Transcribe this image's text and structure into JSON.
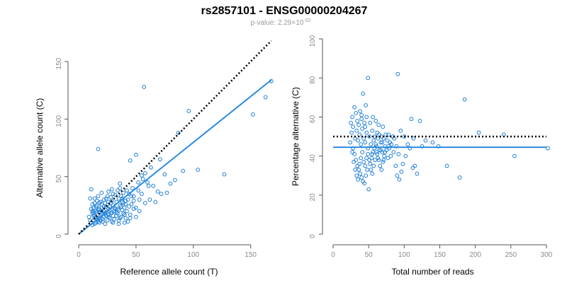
{
  "header": {
    "title": "rs2857101 - ENSG00000204267",
    "pvalue_prefix": "p-value: 2.29×10",
    "pvalue_exponent": "-32"
  },
  "colors": {
    "points": "#1f7fd6",
    "fit": "#2b8ce0",
    "reference": "#000000",
    "axis": "#555555",
    "ticks": "#8a8a8a"
  },
  "chart_data": [
    {
      "type": "scatter",
      "xlabel": "Reference allele count (T)",
      "ylabel": "Alternative allele count (C)",
      "xlim": [
        0,
        170
      ],
      "ylim": [
        0,
        150
      ],
      "xticks": [
        0,
        50,
        100,
        150
      ],
      "yticks": [
        0,
        50,
        100,
        150
      ],
      "reference_line": {
        "style": "dotted",
        "x": [
          0,
          168
        ],
        "y": [
          0,
          168
        ]
      },
      "fit_line": {
        "style": "solid",
        "x": [
          0,
          168
        ],
        "y": [
          0,
          134
        ]
      },
      "points": [
        [
          57,
          128
        ],
        [
          17,
          74
        ],
        [
          152,
          104
        ],
        [
          168,
          133
        ],
        [
          163,
          119
        ],
        [
          96,
          107
        ],
        [
          127,
          52
        ],
        [
          104,
          56
        ],
        [
          87,
          88
        ],
        [
          71,
          65
        ],
        [
          63,
          58
        ],
        [
          58,
          53
        ],
        [
          55,
          51
        ],
        [
          50,
          69
        ],
        [
          45,
          64
        ],
        [
          77,
          36
        ],
        [
          69,
          37
        ],
        [
          61,
          42
        ],
        [
          53,
          30
        ],
        [
          48,
          22
        ],
        [
          46,
          33
        ],
        [
          43,
          30
        ],
        [
          41,
          26
        ],
        [
          38,
          28
        ],
        [
          36,
          25
        ],
        [
          34,
          22
        ],
        [
          31,
          20
        ],
        [
          29,
          19
        ],
        [
          27,
          21
        ],
        [
          26,
          17
        ],
        [
          24,
          16
        ],
        [
          23,
          18
        ],
        [
          22,
          15
        ],
        [
          21,
          13
        ],
        [
          20,
          17
        ],
        [
          19,
          12
        ],
        [
          18,
          14
        ],
        [
          17,
          11
        ],
        [
          16,
          13
        ],
        [
          15,
          10
        ],
        [
          14,
          9
        ],
        [
          13,
          12
        ],
        [
          12,
          8
        ],
        [
          12,
          18
        ],
        [
          13,
          23
        ],
        [
          14,
          27
        ],
        [
          15,
          20
        ],
        [
          16,
          25
        ],
        [
          11,
          39
        ],
        [
          10,
          31
        ],
        [
          12,
          20
        ],
        [
          13,
          16
        ],
        [
          18,
          19
        ],
        [
          20,
          23
        ],
        [
          22,
          20
        ],
        [
          24,
          24
        ],
        [
          26,
          22
        ],
        [
          28,
          27
        ],
        [
          30,
          25
        ],
        [
          33,
          28
        ],
        [
          35,
          31
        ],
        [
          37,
          33
        ],
        [
          39,
          36
        ],
        [
          42,
          38
        ],
        [
          44,
          35
        ],
        [
          47,
          40
        ],
        [
          52,
          45
        ],
        [
          56,
          48
        ],
        [
          60,
          45
        ],
        [
          30,
          35
        ],
        [
          25,
          33
        ],
        [
          22,
          30
        ],
        [
          19,
          28
        ],
        [
          16,
          29
        ],
        [
          15,
          15
        ],
        [
          17,
          21
        ],
        [
          19,
          16
        ],
        [
          21,
          11
        ],
        [
          23,
          9
        ],
        [
          25,
          12
        ],
        [
          27,
          14
        ],
        [
          29,
          11
        ],
        [
          31,
          13
        ],
        [
          33,
          16
        ],
        [
          35,
          12
        ],
        [
          37,
          15
        ],
        [
          39,
          18
        ],
        [
          41,
          14
        ],
        [
          43,
          11
        ],
        [
          45,
          17
        ],
        [
          27,
          24
        ],
        [
          29,
          29
        ],
        [
          31,
          23
        ],
        [
          33,
          19
        ],
        [
          35,
          21
        ],
        [
          37,
          24
        ],
        [
          39,
          27
        ],
        [
          41,
          29
        ],
        [
          14,
          16
        ],
        [
          16,
          19
        ],
        [
          18,
          10
        ],
        [
          20,
          26
        ],
        [
          24,
          31
        ],
        [
          26,
          28
        ],
        [
          28,
          32
        ],
        [
          32,
          34
        ],
        [
          34,
          38
        ],
        [
          36,
          40
        ],
        [
          38,
          31
        ],
        [
          40,
          23
        ],
        [
          42,
          20
        ],
        [
          44,
          24
        ],
        [
          46,
          26
        ],
        [
          48,
          29
        ],
        [
          50,
          23
        ],
        [
          12,
          26
        ],
        [
          14,
          31
        ],
        [
          11,
          22
        ],
        [
          13,
          19
        ],
        [
          15,
          24
        ],
        [
          18,
          22
        ],
        [
          20,
          20
        ],
        [
          22,
          24
        ],
        [
          24,
          19
        ],
        [
          26,
          15
        ],
        [
          28,
          18
        ],
        [
          30,
          16
        ],
        [
          32,
          22
        ],
        [
          34,
          18
        ],
        [
          36,
          14
        ],
        [
          38,
          21
        ],
        [
          40,
          17
        ],
        [
          45,
          14
        ],
        [
          48,
          33
        ],
        [
          52,
          38
        ],
        [
          55,
          35
        ],
        [
          65,
          42
        ],
        [
          75,
          52
        ],
        [
          80,
          44
        ],
        [
          36,
          44
        ],
        [
          17,
          33
        ],
        [
          20,
          36
        ],
        [
          9,
          15
        ],
        [
          10,
          12
        ],
        [
          11,
          10
        ],
        [
          30,
          10
        ],
        [
          35,
          9
        ],
        [
          40,
          10
        ],
        [
          50,
          15
        ],
        [
          53,
          20
        ],
        [
          58,
          27
        ],
        [
          62,
          30
        ],
        [
          67,
          28
        ],
        [
          72,
          35
        ],
        [
          84,
          47
        ],
        [
          91,
          55
        ],
        [
          23,
          27
        ],
        [
          26,
          37
        ],
        [
          29,
          39
        ],
        [
          18,
          27
        ]
      ]
    },
    {
      "type": "scatter",
      "xlabel": "Total number of reads",
      "ylabel": "Percentage alternative (C)",
      "xlim": [
        0,
        300
      ],
      "ylim": [
        0,
        100
      ],
      "xticks": [
        0,
        50,
        100,
        150,
        200,
        250,
        300
      ],
      "yticks": [
        0,
        20,
        40,
        60,
        80,
        100
      ],
      "reference_line": {
        "style": "dotted",
        "x": [
          0,
          300
        ],
        "y": [
          50,
          50
        ]
      },
      "fit_line": {
        "style": "solid",
        "x": [
          0,
          300
        ],
        "y": [
          44.5,
          44.5
        ]
      },
      "points": [
        [
          91,
          82
        ],
        [
          49,
          80
        ],
        [
          42,
          72
        ],
        [
          185,
          69
        ],
        [
          46,
          66
        ],
        [
          30,
          65
        ],
        [
          38,
          63
        ],
        [
          40,
          61
        ],
        [
          110,
          59
        ],
        [
          122,
          58
        ],
        [
          25,
          57
        ],
        [
          34,
          58
        ],
        [
          45,
          55
        ],
        [
          55,
          53
        ],
        [
          62,
          52
        ],
        [
          70,
          55
        ],
        [
          78,
          51
        ],
        [
          84,
          50
        ],
        [
          95,
          53
        ],
        [
          100,
          50
        ],
        [
          113,
          49
        ],
        [
          205,
          52
        ],
        [
          240,
          51
        ],
        [
          140,
          47
        ],
        [
          148,
          45
        ],
        [
          160,
          35
        ],
        [
          178,
          29
        ],
        [
          255,
          40
        ],
        [
          302,
          44
        ],
        [
          24,
          47
        ],
        [
          28,
          44
        ],
        [
          30,
          41
        ],
        [
          32,
          38
        ],
        [
          34,
          35
        ],
        [
          36,
          33
        ],
        [
          38,
          31
        ],
        [
          40,
          29
        ],
        [
          42,
          27
        ],
        [
          44,
          26
        ],
        [
          46,
          30
        ],
        [
          48,
          33
        ],
        [
          50,
          23
        ],
        [
          52,
          36
        ],
        [
          54,
          39
        ],
        [
          56,
          42
        ],
        [
          58,
          44
        ],
        [
          60,
          46
        ],
        [
          62,
          41
        ],
        [
          64,
          38
        ],
        [
          66,
          35
        ],
        [
          68,
          33
        ],
        [
          70,
          37
        ],
        [
          72,
          40
        ],
        [
          75,
          43
        ],
        [
          78,
          45
        ],
        [
          80,
          47
        ],
        [
          85,
          42
        ],
        [
          88,
          35
        ],
        [
          90,
          30
        ],
        [
          93,
          28
        ],
        [
          96,
          32
        ],
        [
          98,
          36
        ],
        [
          102,
          40
        ],
        [
          105,
          46
        ],
        [
          108,
          44
        ],
        [
          112,
          34
        ],
        [
          115,
          35
        ],
        [
          118,
          31
        ],
        [
          125,
          45
        ],
        [
          130,
          48
        ],
        [
          26,
          52
        ],
        [
          28,
          55
        ],
        [
          31,
          49
        ],
        [
          33,
          53
        ],
        [
          35,
          48
        ],
        [
          37,
          51
        ],
        [
          39,
          46
        ],
        [
          41,
          54
        ],
        [
          43,
          49
        ],
        [
          45,
          47
        ],
        [
          47,
          52
        ],
        [
          49,
          44
        ],
        [
          51,
          50
        ],
        [
          53,
          46
        ],
        [
          55,
          41
        ],
        [
          57,
          48
        ],
        [
          59,
          50
        ],
        [
          61,
          45
        ],
        [
          63,
          49
        ],
        [
          65,
          51
        ],
        [
          67,
          43
        ],
        [
          69,
          47
        ],
        [
          71,
          49
        ],
        [
          73,
          45
        ],
        [
          76,
          48
        ],
        [
          79,
          44
        ],
        [
          82,
          46
        ],
        [
          86,
          49
        ],
        [
          89,
          45
        ],
        [
          92,
          41
        ],
        [
          27,
          42
        ],
        [
          29,
          37
        ],
        [
          31,
          33
        ],
        [
          33,
          30
        ],
        [
          35,
          28
        ],
        [
          37,
          36
        ],
        [
          39,
          39
        ],
        [
          41,
          42
        ],
        [
          43,
          37
        ],
        [
          45,
          35
        ],
        [
          47,
          39
        ],
        [
          49,
          41
        ],
        [
          51,
          38
        ],
        [
          53,
          33
        ],
        [
          55,
          31
        ],
        [
          57,
          35
        ],
        [
          59,
          38
        ],
        [
          61,
          42
        ],
        [
          63,
          39
        ],
        [
          65,
          43
        ],
        [
          67,
          47
        ],
        [
          69,
          42
        ],
        [
          71,
          38
        ],
        [
          73,
          42
        ],
        [
          77,
          39
        ],
        [
          81,
          40
        ],
        [
          27,
          60
        ],
        [
          32,
          62
        ],
        [
          36,
          56
        ],
        [
          40,
          59
        ],
        [
          44,
          57
        ],
        [
          47,
          60
        ],
        [
          52,
          57
        ],
        [
          56,
          60
        ],
        [
          60,
          58
        ],
        [
          64,
          56
        ],
        [
          68,
          50
        ],
        [
          74,
          51
        ]
      ]
    }
  ]
}
